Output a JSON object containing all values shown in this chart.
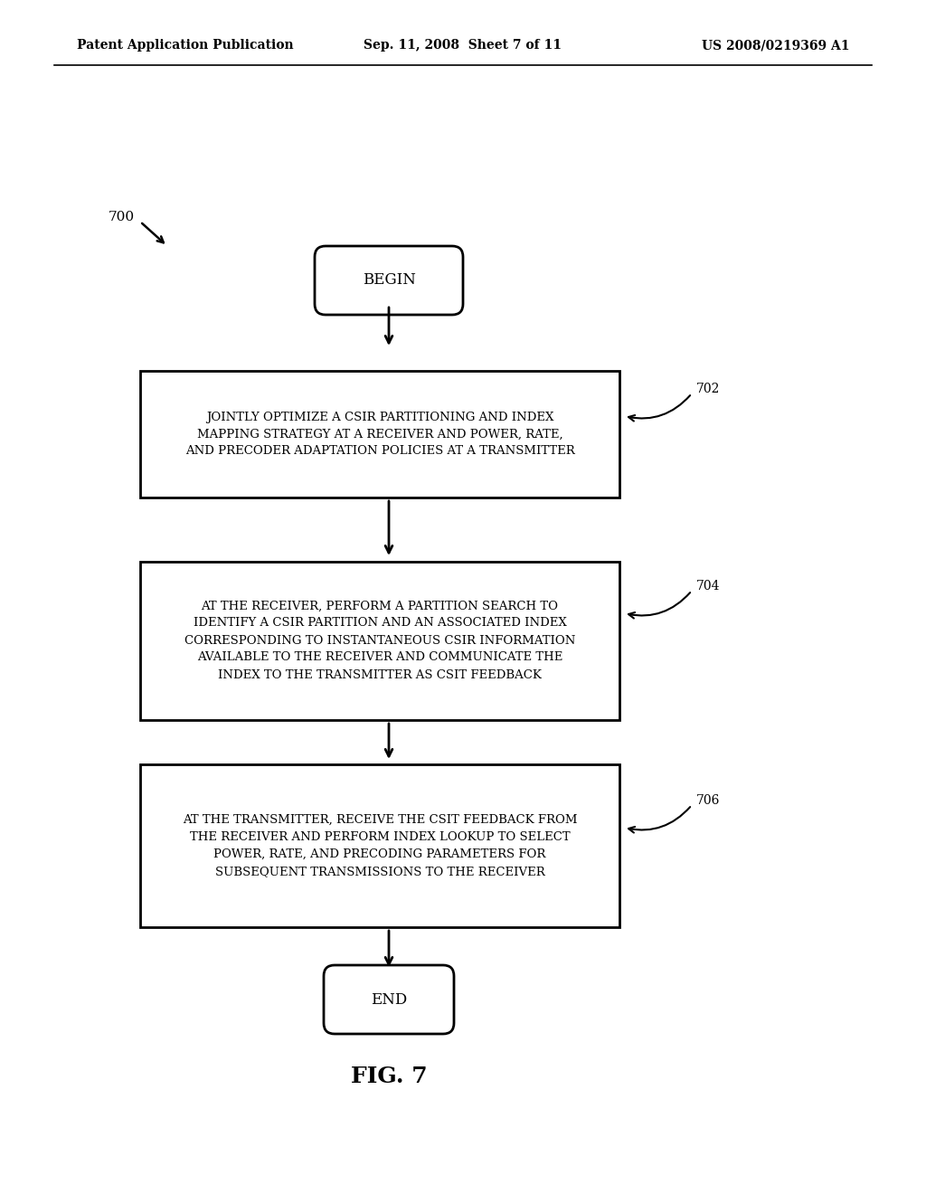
{
  "background_color": "#ffffff",
  "header_left": "Patent Application Publication",
  "header_center": "Sep. 11, 2008  Sheet 7 of 11",
  "header_right": "US 2008/0219369 A1",
  "fig_label": "FIG. 7",
  "figure_number": "700",
  "begin_text": "BEGIN",
  "end_text": "END",
  "box1_text": "JOINTLY OPTIMIZE A CSIR PARTITIONING AND INDEX\nMAPPING STRATEGY AT A RECEIVER AND POWER, RATE,\nAND PRECODER ADAPTATION POLICIES AT A TRANSMITTER",
  "box1_label": "702",
  "box2_text": "AT THE RECEIVER, PERFORM A PARTITION SEARCH TO\nIDENTIFY A CSIR PARTITION AND AN ASSOCIATED INDEX\nCORRESPONDING TO INSTANTANEOUS CSIR INFORMATION\nAVAILABLE TO THE RECEIVER AND COMMUNICATE THE\nINDEX TO THE TRANSMITTER AS CSIT FEEDBACK",
  "box2_label": "704",
  "box3_text": "AT THE TRANSMITTER, RECEIVE THE CSIT FEEDBACK FROM\nTHE RECEIVER AND PERFORM INDEX LOOKUP TO SELECT\nPOWER, RATE, AND PRECODING PARAMETERS FOR\nSUBSEQUENT TRANSMISSIONS TO THE RECEIVER",
  "box3_label": "706"
}
